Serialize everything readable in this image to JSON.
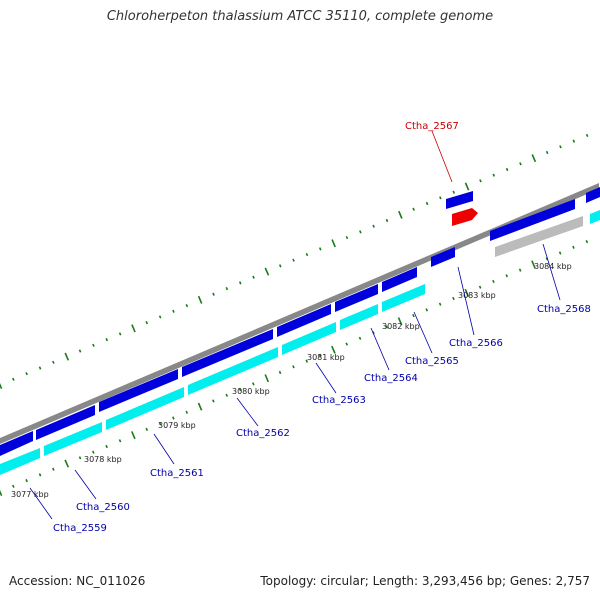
{
  "title": "Chloroherpeton thalassium ATCC 35110, complete genome",
  "footer": {
    "accession": "Accession: NC_011026",
    "summary": "Topology: circular; Length: 3,293,456 bp; Genes: 2,757"
  },
  "colors": {
    "forward_gene": "#0000dd",
    "forward_cds": "#00eeee",
    "highlight_gene": "#ee0000",
    "pseudo_gene": "#bbbbbb",
    "backbone": "#888888",
    "tick": "#1a7a1a",
    "gene_label": "#0000aa",
    "highlight_label": "#cc0000"
  },
  "scale_labels": [
    "3077 kbp",
    "3078 kbp",
    "3079 kbp",
    "3080 kbp",
    "3081 kbp",
    "3082 kbp",
    "3083 kbp",
    "3084 kbp"
  ],
  "genes": [
    {
      "label": "Ctha_2559"
    },
    {
      "label": "Ctha_2560"
    },
    {
      "label": "Ctha_2561"
    },
    {
      "label": "Ctha_2562"
    },
    {
      "label": "Ctha_2563"
    },
    {
      "label": "Ctha_2564"
    },
    {
      "label": "Ctha_2565"
    },
    {
      "label": "Ctha_2566"
    },
    {
      "label": "Ctha_2567"
    },
    {
      "label": "Ctha_2568"
    }
  ]
}
